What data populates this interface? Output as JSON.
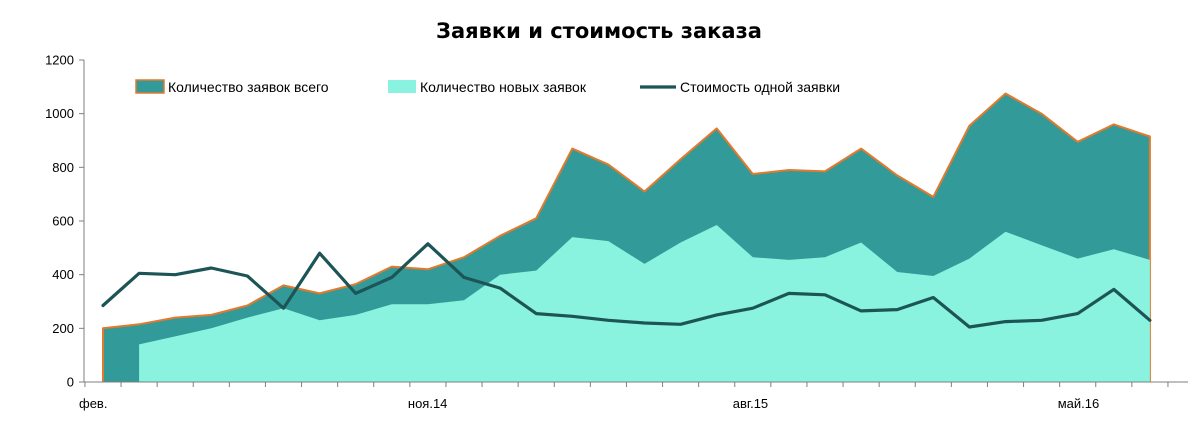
{
  "chart_data": {
    "type": "area",
    "title": "Заявки и стоимость заказа",
    "ylim": [
      0,
      1200
    ],
    "y_ticks": [
      "0",
      "200",
      "400",
      "600",
      "800",
      "1000",
      "1200"
    ],
    "x_tick_labels": [
      "фев.",
      "ноя.14",
      "авг.15",
      "май.16"
    ],
    "x_tick_positions": [
      0,
      9,
      18,
      27
    ],
    "legend_position": "top",
    "colors": {
      "total_fill": "#329b99",
      "total_edge": "#e27a2e",
      "new_fill": "#8af3df",
      "cost_line": "#1d5557"
    },
    "series": [
      {
        "name": "Количество заявок всего",
        "style": "area",
        "x_start": 0,
        "values": [
          200,
          215,
          240,
          250,
          285,
          360,
          330,
          365,
          430,
          420,
          465,
          545,
          610,
          870,
          810,
          710,
          830,
          945,
          775,
          790,
          785,
          870,
          770,
          690,
          955,
          1075,
          1000,
          895,
          960,
          915
        ]
      },
      {
        "name": "Количество новых заявок",
        "style": "area",
        "x_start": 1,
        "values": [
          140,
          170,
          200,
          240,
          275,
          230,
          250,
          290,
          290,
          305,
          400,
          415,
          540,
          525,
          440,
          520,
          585,
          465,
          455,
          465,
          520,
          410,
          395,
          460,
          560,
          510,
          460,
          495,
          455
        ]
      },
      {
        "name": "Стоимость одной заявки",
        "style": "line",
        "x_start": 0,
        "values": [
          285,
          405,
          400,
          425,
          395,
          275,
          480,
          330,
          390,
          515,
          390,
          350,
          255,
          245,
          230,
          220,
          215,
          250,
          275,
          330,
          325,
          265,
          270,
          315,
          205,
          225,
          230,
          255,
          345,
          230
        ]
      }
    ]
  }
}
